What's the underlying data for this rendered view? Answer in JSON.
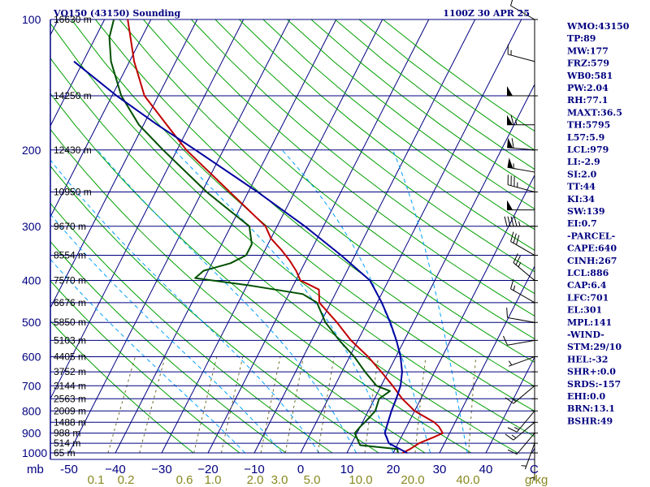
{
  "chart_data": {
    "type": "line",
    "title": "VQ150 (43150) Sounding",
    "time_label": "1100Z 30 APR 25",
    "xlabel": "",
    "ylabel": "mb",
    "pressure_levels": [
      100,
      200,
      300,
      400,
      500,
      600,
      700,
      800,
      900,
      1000
    ],
    "pressure_tick_labels": [
      "100",
      "200",
      "300",
      "400",
      "500",
      "600",
      "700",
      "800",
      "900",
      "1000"
    ],
    "pressure_axis_unit": "mb",
    "temperature_ticks": [
      -50,
      -40,
      -30,
      -20,
      -10,
      0,
      10,
      20,
      30,
      40
    ],
    "temperature_tick_labels": [
      "-50",
      "−40",
      "−30",
      "−20",
      "−10",
      "0",
      "10",
      "20",
      "30",
      "40"
    ],
    "temperature_axis_end_label": "C",
    "mixing_ratio_labels": [
      "0.1",
      "0.2",
      "0.6",
      "1.0",
      "2.0",
      "3.0",
      "5.0",
      "10.0",
      "20.0",
      "40.0"
    ],
    "mixing_ratio_unit": "g/kg",
    "height_labels": [
      {
        "p": 100,
        "text": "16630 m"
      },
      {
        "p": 150,
        "text": "14250 m"
      },
      {
        "p": 200,
        "text": "12430 m"
      },
      {
        "p": 250,
        "text": "10950 m"
      },
      {
        "p": 300,
        "text": "9670 m"
      },
      {
        "p": 350,
        "text": "8554 m"
      },
      {
        "p": 400,
        "text": "7570 m"
      },
      {
        "p": 450,
        "text": "6676 m"
      },
      {
        "p": 500,
        "text": "5850 m"
      },
      {
        "p": 550,
        "text": "5103 m"
      },
      {
        "p": 600,
        "text": "4405 m"
      },
      {
        "p": 650,
        "text": "3752 m"
      },
      {
        "p": 700,
        "text": "3144 m"
      },
      {
        "p": 750,
        "text": "2563 m"
      },
      {
        "p": 800,
        "text": "2009 m"
      },
      {
        "p": 850,
        "text": "1488 m"
      },
      {
        "p": 900,
        "text": "988 m"
      },
      {
        "p": 950,
        "text": "514 m"
      },
      {
        "p": 1000,
        "text": "65 m"
      }
    ],
    "series": [
      {
        "color": "#c00000",
        "points": [
          [
            1000,
            22
          ],
          [
            980,
            23.2
          ],
          [
            950,
            24.5
          ],
          [
            920,
            27
          ],
          [
            900,
            28.5
          ],
          [
            870,
            27
          ],
          [
            850,
            25.5
          ],
          [
            800,
            20
          ],
          [
            750,
            16
          ],
          [
            700,
            12.5
          ],
          [
            650,
            8.5
          ],
          [
            600,
            4
          ],
          [
            550,
            -1.5
          ],
          [
            500,
            -6.5
          ],
          [
            450,
            -12.5
          ],
          [
            420,
            -14
          ],
          [
            400,
            -19
          ],
          [
            380,
            -21
          ],
          [
            360,
            -23.5
          ],
          [
            340,
            -26.5
          ],
          [
            320,
            -30
          ],
          [
            300,
            -32.5
          ],
          [
            250,
            -44
          ],
          [
            200,
            -58
          ],
          [
            175,
            -65
          ],
          [
            150,
            -73
          ],
          [
            125,
            -79
          ],
          [
            100,
            -85
          ]
        ]
      },
      {
        "color": "#005000",
        "points": [
          [
            1000,
            21
          ],
          [
            980,
            20.5
          ],
          [
            960,
            12
          ],
          [
            900,
            9.5
          ],
          [
            870,
            10
          ],
          [
            850,
            10.5
          ],
          [
            800,
            11.5
          ],
          [
            750,
            11
          ],
          [
            720,
            12.5
          ],
          [
            700,
            9
          ],
          [
            650,
            5
          ],
          [
            600,
            1
          ],
          [
            550,
            -4
          ],
          [
            500,
            -9
          ],
          [
            450,
            -13
          ],
          [
            430,
            -17
          ],
          [
            410,
            -30
          ],
          [
            395,
            -42
          ],
          [
            380,
            -41
          ],
          [
            365,
            -36
          ],
          [
            350,
            -33.5
          ],
          [
            330,
            -33.5
          ],
          [
            300,
            -36
          ],
          [
            250,
            -49
          ],
          [
            200,
            -63
          ],
          [
            175,
            -71
          ],
          [
            150,
            -78
          ],
          [
            125,
            -84
          ],
          [
            110,
            -87
          ],
          [
            100,
            -88
          ]
        ]
      },
      {
        "color": "#0000a0",
        "points": [
          [
            1000,
            23
          ],
          [
            980,
            21
          ],
          [
            950,
            18
          ],
          [
            900,
            16
          ],
          [
            850,
            15.5
          ],
          [
            800,
            15
          ],
          [
            750,
            14.7
          ],
          [
            700,
            14.2
          ],
          [
            650,
            13
          ],
          [
            600,
            11
          ],
          [
            550,
            8.3
          ],
          [
            500,
            5
          ],
          [
            450,
            1
          ],
          [
            400,
            -4
          ],
          [
            350,
            -13
          ],
          [
            300,
            -24
          ],
          [
            250,
            -38
          ],
          [
            200,
            -56
          ],
          [
            175,
            -67
          ],
          [
            150,
            -79
          ],
          [
            125,
            -92
          ]
        ]
      }
    ],
    "wind_barbs": [
      {
        "p": 100,
        "dir": 300,
        "spd": 10
      },
      {
        "p": 125,
        "dir": 285,
        "spd": 15
      },
      {
        "p": 150,
        "dir": 270,
        "spd": 50
      },
      {
        "p": 175,
        "dir": 270,
        "spd": 65
      },
      {
        "p": 200,
        "dir": 275,
        "spd": 60
      },
      {
        "p": 225,
        "dir": 280,
        "spd": 55
      },
      {
        "p": 250,
        "dir": 285,
        "spd": 35
      },
      {
        "p": 275,
        "dir": 270,
        "spd": 50
      },
      {
        "p": 300,
        "dir": 270,
        "spd": 45
      },
      {
        "p": 350,
        "dir": 300,
        "spd": 30
      },
      {
        "p": 400,
        "dir": 310,
        "spd": 25
      },
      {
        "p": 450,
        "dir": 300,
        "spd": 15
      },
      {
        "p": 500,
        "dir": 280,
        "spd": 10
      },
      {
        "p": 550,
        "dir": 260,
        "spd": 10
      },
      {
        "p": 600,
        "dir": 250,
        "spd": 5
      },
      {
        "p": 700,
        "dir": 230,
        "spd": 15
      },
      {
        "p": 800,
        "dir": 220,
        "spd": 15
      },
      {
        "p": 850,
        "dir": 230,
        "spd": 15
      },
      {
        "p": 900,
        "dir": 220,
        "spd": 10
      },
      {
        "p": 950,
        "dir": 200,
        "spd": 5
      },
      {
        "p": 1000,
        "dir": 180,
        "spd": 5
      }
    ],
    "legend": "none",
    "grid": true
  },
  "indices": [
    "WMO:43150",
    "TP:89",
    "MW:177",
    "FRZ:579",
    "WB0:581",
    "PW:2.04",
    "RH:77.1",
    "MAXT:36.5",
    "TH:5795",
    "L57:5.9",
    "LCL:979",
    "LI:-2.9",
    "SI:2.0",
    "TT:44",
    "KI:34",
    "SW:139",
    "EI:0.7",
    "-PARCEL-",
    "CAPE:640",
    "CINH:267",
    "LCL:886",
    "CAP:6.4",
    "LFC:701",
    "EL:301",
    "MPL:141",
    "-WIND-",
    "STM:29/10",
    "HEL:-32",
    "SHR+:0.0",
    "SRDS:-157",
    "EHI:0.0",
    "BRN:13.1",
    "BSHR:49"
  ],
  "colors": {
    "background": "#ffffff",
    "isobar": "#000080",
    "isotherm": "#000080",
    "dry_adiabat": "#00a000",
    "moist_adiabat": "#00a0ff",
    "mixing_ratio": "#707030",
    "temperature": "#c00000",
    "dewpoint": "#005000",
    "parcel": "#0000a0",
    "text": "#000080"
  }
}
